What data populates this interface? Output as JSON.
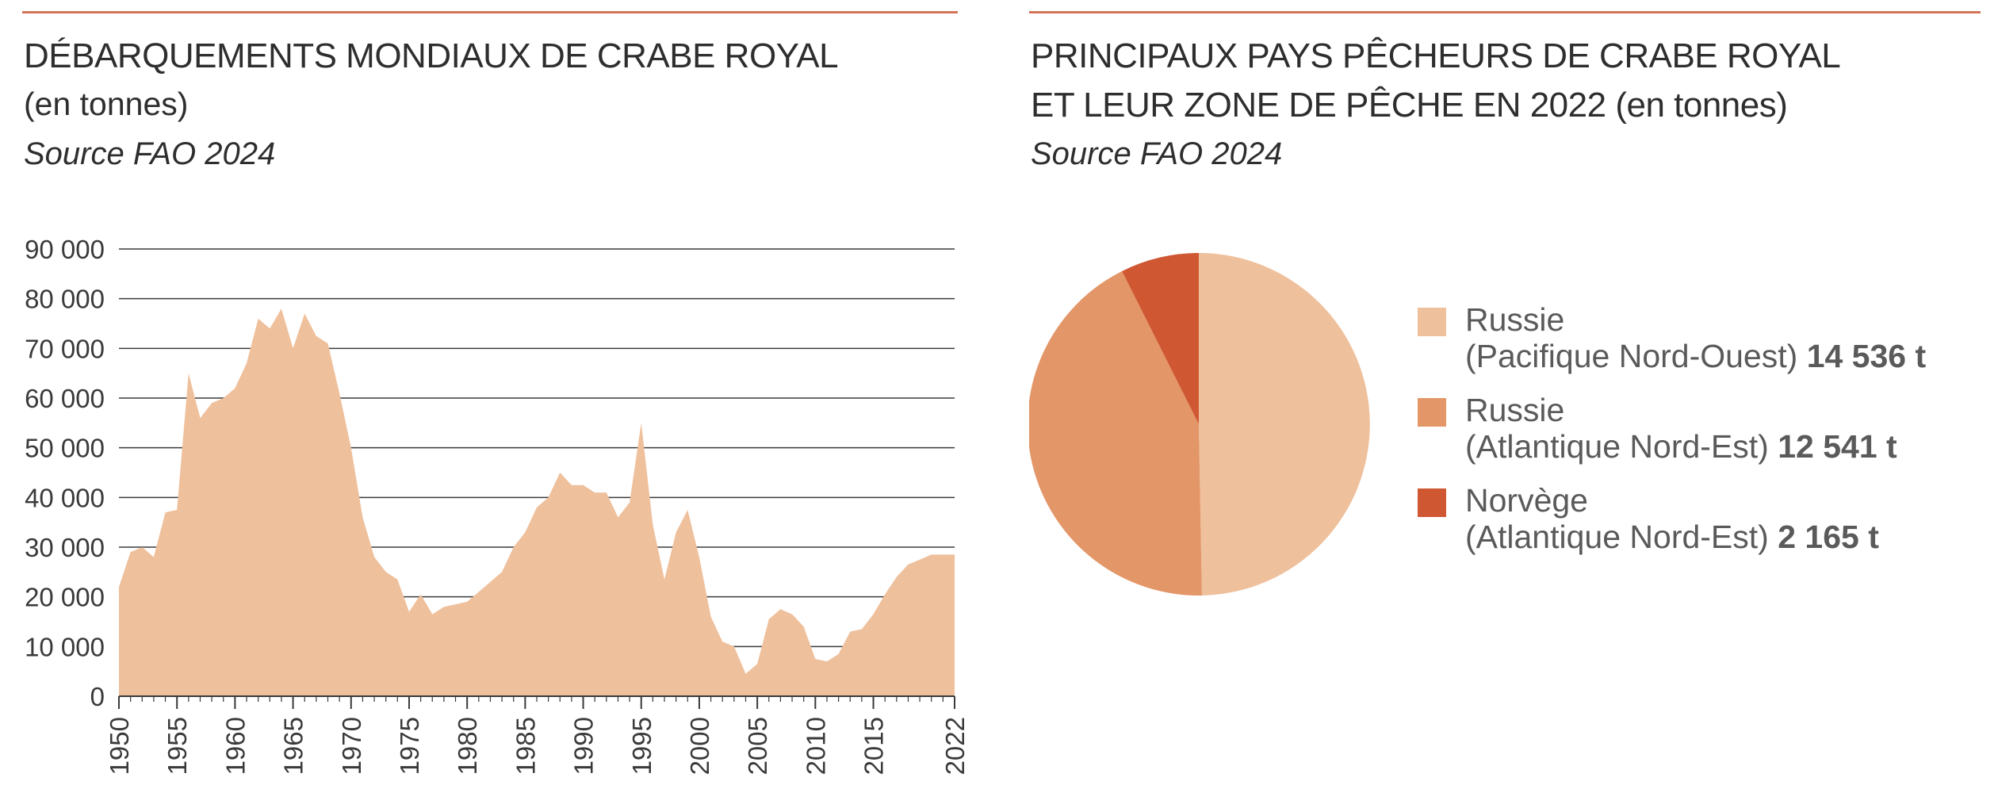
{
  "left": {
    "title": "DÉBARQUEMENTS MONDIAUX DE CRABE ROYAL",
    "subtitle": "(en tonnes)",
    "source": "Source FAO 2024"
  },
  "right": {
    "title_line1": "PRINCIPAUX PAYS PÊCHEURS DE CRABE ROYAL",
    "title_line2": "ET LEUR ZONE DE PÊCHE EN 2022 (en tonnes)",
    "source": "Source FAO 2024"
  },
  "colors": {
    "rule": "#d4735a",
    "area": "#efc09c",
    "gridline": "#3a3a3a",
    "russie_pacifique": "#efc09c",
    "russie_atlantique": "#e39667",
    "norvege": "#cf5833"
  },
  "chart_data": [
    {
      "type": "area",
      "title": "DÉBARQUEMENTS MONDIAUX DE CRABE ROYAL",
      "ylabel": "(en tonnes)",
      "xlabel": "",
      "ylim": [
        0,
        90000
      ],
      "xlim": [
        1950,
        2022
      ],
      "grid": true,
      "yticks": [
        0,
        10000,
        20000,
        30000,
        40000,
        50000,
        60000,
        70000,
        80000,
        90000
      ],
      "ytick_labels": [
        "0",
        "10 000",
        "20 000",
        "30 000",
        "40 000",
        "50 000",
        "60 000",
        "70 000",
        "80 000",
        "90 000"
      ],
      "xticks": [
        1950,
        1955,
        1960,
        1965,
        1970,
        1975,
        1980,
        1985,
        1990,
        1995,
        2000,
        2005,
        2010,
        2015,
        2022
      ],
      "xtick_labels": [
        "1950",
        "1955",
        "1960",
        "1965",
        "1970",
        "1975",
        "1980",
        "1985",
        "1990",
        "1995",
        "2000",
        "2005",
        "2010",
        "2015",
        "2022"
      ],
      "x": [
        1950,
        1951,
        1952,
        1953,
        1954,
        1955,
        1956,
        1957,
        1958,
        1959,
        1960,
        1961,
        1962,
        1963,
        1964,
        1965,
        1966,
        1967,
        1968,
        1969,
        1970,
        1971,
        1972,
        1973,
        1974,
        1975,
        1976,
        1977,
        1978,
        1979,
        1980,
        1981,
        1982,
        1983,
        1984,
        1985,
        1986,
        1987,
        1988,
        1989,
        1990,
        1991,
        1992,
        1993,
        1994,
        1995,
        1996,
        1997,
        1998,
        1999,
        2000,
        2001,
        2002,
        2003,
        2004,
        2005,
        2006,
        2007,
        2008,
        2009,
        2010,
        2011,
        2012,
        2013,
        2014,
        2015,
        2016,
        2017,
        2018,
        2019,
        2020,
        2021,
        2022
      ],
      "values": [
        22000,
        29000,
        30000,
        28000,
        37000,
        37500,
        65000,
        56000,
        59000,
        60000,
        62000,
        67000,
        76000,
        74000,
        78000,
        70000,
        77000,
        72500,
        71000,
        61000,
        50000,
        36000,
        28000,
        25000,
        23500,
        17000,
        20500,
        16500,
        18000,
        18500,
        19000,
        21000,
        23000,
        25000,
        30000,
        33000,
        38000,
        40000,
        45000,
        42500,
        42500,
        41000,
        41000,
        36000,
        39000,
        55000,
        34500,
        23500,
        33000,
        37500,
        28000,
        16000,
        11000,
        10000,
        4500,
        6500,
        15500,
        17500,
        16500,
        14000,
        7500,
        7000,
        8500,
        13000,
        13500,
        16500,
        20500,
        24000,
        26500,
        27500,
        28500,
        28500,
        28500
      ]
    },
    {
      "type": "pie",
      "title": "PRINCIPAUX PAYS PÊCHEURS DE CRABE ROYAL ET LEUR ZONE DE PÊCHE EN 2022 (en tonnes)",
      "slices": [
        {
          "country": "Russie",
          "zone": "(Pacifique Nord-Ouest)",
          "value": 14536,
          "value_label": "14 536 t",
          "color": "#efc09c"
        },
        {
          "country": "Russie",
          "zone": "(Atlantique Nord-Est)",
          "value": 12541,
          "value_label": "12 541 t",
          "color": "#e39667"
        },
        {
          "country": "Norvège",
          "zone": "(Atlantique Nord-Est)",
          "value": 2165,
          "value_label": "2 165 t",
          "color": "#cf5833"
        }
      ],
      "legend_position": "right"
    }
  ]
}
